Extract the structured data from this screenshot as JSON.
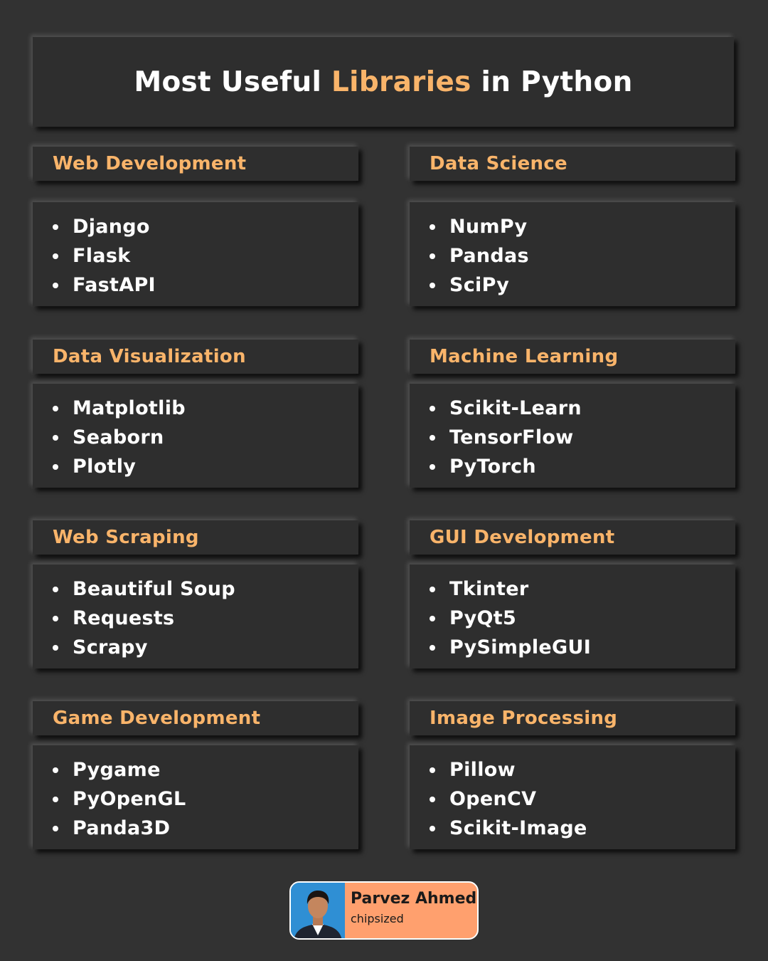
{
  "title": {
    "before": "Most Useful ",
    "accent": "Libraries",
    "after": " in Python"
  },
  "sections": [
    {
      "heading": "Web Development",
      "items": [
        "Django",
        "Flask",
        "FastAPI"
      ]
    },
    {
      "heading": "Data Science",
      "items": [
        "NumPy",
        "Pandas",
        "SciPy"
      ]
    },
    {
      "heading": "Data Visualization",
      "items": [
        "Matplotlib",
        "Seaborn",
        "Plotly"
      ]
    },
    {
      "heading": "Machine Learning",
      "items": [
        "Scikit-Learn",
        "TensorFlow",
        "PyTorch"
      ]
    },
    {
      "heading": "Web Scraping",
      "items": [
        "Beautiful Soup",
        "Requests",
        "Scrapy"
      ]
    },
    {
      "heading": "GUI Development",
      "items": [
        "Tkinter",
        "PyQt5",
        "PySimpleGUI"
      ]
    },
    {
      "heading": "Game Development",
      "items": [
        "Pygame",
        "PyOpenGL",
        "Panda3D"
      ]
    },
    {
      "heading": "Image Processing",
      "items": [
        "Pillow",
        "OpenCV",
        "Scikit-Image"
      ]
    }
  ],
  "author": {
    "name": "Parvez Ahmed",
    "handle": "chipsized"
  },
  "colors": {
    "background": "#323232",
    "accent": "#f9b46a",
    "card_accent": "#ffa06e"
  }
}
